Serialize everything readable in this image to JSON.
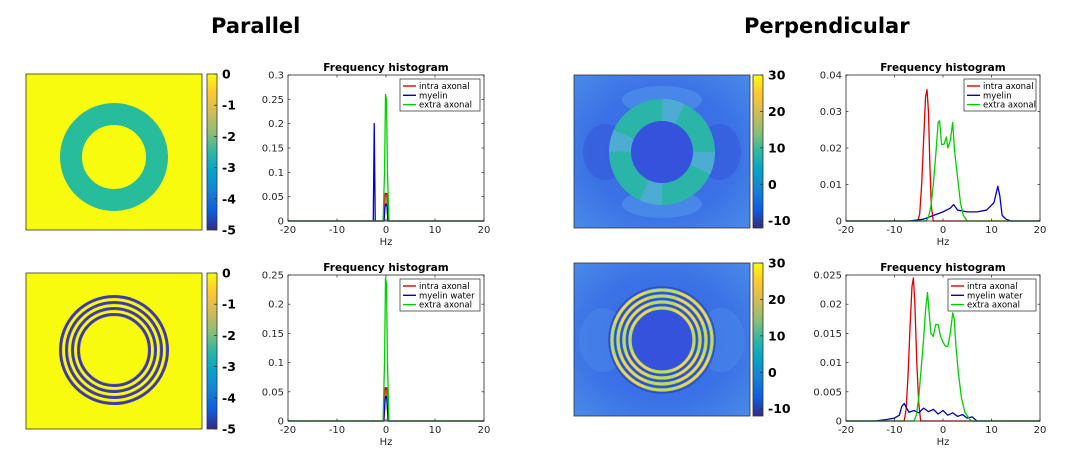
{
  "headings": {
    "left": "Parallel",
    "right": "Perpendicular"
  },
  "colors": {
    "intra": "#e00000",
    "myelin": "#0000d0",
    "extra": "#00d000",
    "yellow": "#f9fb0e",
    "teal": "#27bc9b",
    "stripe_dark": "#3d3aa8",
    "field_bg": "#3b6fe6",
    "field_bg_edge": "#4a8ae8",
    "field_center": "#3552dc"
  },
  "colorbars": [
    {
      "ticks": [
        "0",
        "-1",
        "-2",
        "-3",
        "-4",
        "-5"
      ],
      "range": [
        -5,
        0
      ]
    },
    {
      "ticks": [
        "30",
        "20",
        "10",
        "0",
        "-10"
      ],
      "range": [
        -12,
        30
      ]
    },
    {
      "ticks": [
        "0",
        "-1",
        "-2",
        "-3",
        "-4",
        "-5"
      ],
      "range": [
        -5,
        0
      ]
    },
    {
      "ticks": [
        "30",
        "20",
        "10",
        "0",
        "-10"
      ],
      "range": [
        -12,
        30
      ]
    }
  ],
  "maps": [
    {
      "kind": "parallel-solid"
    },
    {
      "kind": "perpendicular-solid"
    },
    {
      "kind": "parallel-rings"
    },
    {
      "kind": "perpendicular-rings"
    }
  ],
  "chart_data": [
    {
      "type": "line",
      "title": "Frequency histogram",
      "xlabel": "Hz",
      "ylabel": "",
      "xlim": [
        -20,
        20
      ],
      "ylim": [
        0,
        0.3
      ],
      "xticks": [
        "-20",
        "-10",
        "0",
        "10",
        "20"
      ],
      "yticks": [
        "0",
        "0.05",
        "0.1",
        "0.15",
        "0.2",
        "0.25",
        "0.3"
      ],
      "legend_position": "top-right",
      "series": [
        {
          "name": "intra axonal",
          "color": "#e00000",
          "points": [
            [
              -20,
              0
            ],
            [
              -0.4,
              0
            ],
            [
              -0.3,
              0.02
            ],
            [
              -0.15,
              0.057
            ],
            [
              0,
              0.055
            ],
            [
              0.15,
              0.057
            ],
            [
              0.3,
              0.02
            ],
            [
              0.4,
              0
            ],
            [
              20,
              0
            ]
          ]
        },
        {
          "name": "myelin",
          "color": "#0000d0",
          "points": [
            [
              -20,
              0
            ],
            [
              -2.6,
              0
            ],
            [
              -2.4,
              0.2
            ],
            [
              -2.2,
              0
            ],
            [
              -0.4,
              0
            ],
            [
              -0.2,
              0.03
            ],
            [
              0,
              0.035
            ],
            [
              0.2,
              0.03
            ],
            [
              0.4,
              0
            ],
            [
              20,
              0
            ]
          ]
        },
        {
          "name": "extra axonal",
          "color": "#00d000",
          "points": [
            [
              -20,
              0
            ],
            [
              -0.6,
              0
            ],
            [
              -0.3,
              0.1
            ],
            [
              -0.1,
              0.26
            ],
            [
              0.1,
              0.25
            ],
            [
              0.3,
              0.1
            ],
            [
              0.6,
              0
            ],
            [
              20,
              0
            ]
          ]
        }
      ]
    },
    {
      "type": "line",
      "title": "Frequency histogram",
      "xlabel": "Hz",
      "ylabel": "",
      "xlim": [
        -20,
        20
      ],
      "ylim": [
        0,
        0.04
      ],
      "xticks": [
        "-20",
        "-10",
        "0",
        "10",
        "20"
      ],
      "yticks": [
        "0",
        "0.01",
        "0.02",
        "0.03",
        "0.04"
      ],
      "legend_position": "top-right",
      "series": [
        {
          "name": "intra axonal",
          "color": "#e00000",
          "points": [
            [
              -20,
              0
            ],
            [
              -5.2,
              0
            ],
            [
              -4.8,
              0.002
            ],
            [
              -4.4,
              0.01
            ],
            [
              -4.0,
              0.022
            ],
            [
              -3.6,
              0.034
            ],
            [
              -3.3,
              0.036
            ],
            [
              -3.0,
              0.03
            ],
            [
              -2.7,
              0.015
            ],
            [
              -2.4,
              0.004
            ],
            [
              -2.0,
              0
            ],
            [
              20,
              0
            ]
          ]
        },
        {
          "name": "myelin",
          "color": "#0000d0",
          "points": [
            [
              -20,
              0
            ],
            [
              -7,
              0
            ],
            [
              -4,
              0.0005
            ],
            [
              -2,
              0.0015
            ],
            [
              0,
              0.0025
            ],
            [
              1.5,
              0.0035
            ],
            [
              2.2,
              0.0045
            ],
            [
              3,
              0.003
            ],
            [
              5,
              0.0025
            ],
            [
              7,
              0.0025
            ],
            [
              9,
              0.003
            ],
            [
              10.5,
              0.005
            ],
            [
              11.3,
              0.0095
            ],
            [
              11.7,
              0.007
            ],
            [
              12.2,
              0.0015
            ],
            [
              13,
              0.0005
            ],
            [
              14,
              0
            ],
            [
              20,
              0
            ]
          ]
        },
        {
          "name": "extra axonal",
          "color": "#00d000",
          "points": [
            [
              -20,
              0
            ],
            [
              -3.5,
              0
            ],
            [
              -3.0,
              0.001
            ],
            [
              -2.5,
              0.004
            ],
            [
              -2.0,
              0.01
            ],
            [
              -1.5,
              0.018
            ],
            [
              -1.0,
              0.027
            ],
            [
              -0.7,
              0.0275
            ],
            [
              -0.3,
              0.021
            ],
            [
              0.2,
              0.021
            ],
            [
              0.7,
              0.023
            ],
            [
              1.0,
              0.02
            ],
            [
              1.5,
              0.022
            ],
            [
              2.0,
              0.027
            ],
            [
              2.4,
              0.019
            ],
            [
              3,
              0.012
            ],
            [
              3.6,
              0.005
            ],
            [
              4.2,
              0.0015
            ],
            [
              5,
              0
            ],
            [
              20,
              0
            ]
          ]
        }
      ]
    },
    {
      "type": "line",
      "title": "Frequency histogram",
      "xlabel": "Hz",
      "ylabel": "",
      "xlim": [
        -20,
        20
      ],
      "ylim": [
        0,
        0.25
      ],
      "xticks": [
        "-20",
        "-10",
        "0",
        "10",
        "20"
      ],
      "yticks": [
        "0",
        "0.05",
        "0.1",
        "0.15",
        "0.2",
        "0.25"
      ],
      "legend_position": "top-right",
      "series": [
        {
          "name": "intra axonal",
          "color": "#e00000",
          "points": [
            [
              -20,
              0
            ],
            [
              -0.4,
              0
            ],
            [
              -0.3,
              0.02
            ],
            [
              -0.15,
              0.057
            ],
            [
              0,
              0.055
            ],
            [
              0.15,
              0.057
            ],
            [
              0.3,
              0.02
            ],
            [
              0.4,
              0
            ],
            [
              20,
              0
            ]
          ]
        },
        {
          "name": "myelin water",
          "color": "#0000d0",
          "points": [
            [
              -20,
              0
            ],
            [
              -0.5,
              0
            ],
            [
              -0.3,
              0.02
            ],
            [
              -0.15,
              0.04
            ],
            [
              0,
              0.042
            ],
            [
              0.15,
              0.038
            ],
            [
              0.3,
              0.02
            ],
            [
              0.5,
              0
            ],
            [
              20,
              0
            ]
          ]
        },
        {
          "name": "extra axonal",
          "color": "#00d000",
          "points": [
            [
              -20,
              0
            ],
            [
              -0.6,
              0
            ],
            [
              -0.3,
              0.1
            ],
            [
              -0.1,
              0.245
            ],
            [
              0.1,
              0.235
            ],
            [
              0.3,
              0.1
            ],
            [
              0.6,
              0
            ],
            [
              20,
              0
            ]
          ]
        }
      ]
    },
    {
      "type": "line",
      "title": "Frequency histogram",
      "xlabel": "Hz",
      "ylabel": "",
      "xlim": [
        -20,
        20
      ],
      "ylim": [
        0,
        0.025
      ],
      "xticks": [
        "-20",
        "-10",
        "0",
        "10",
        "20"
      ],
      "yticks": [
        "0",
        "0.005",
        "0.01",
        "0.015",
        "0.02",
        "0.025"
      ],
      "legend_position": "top-right",
      "series": [
        {
          "name": "intra axonal",
          "color": "#e00000",
          "points": [
            [
              -20,
              0
            ],
            [
              -8.0,
              0
            ],
            [
              -7.6,
              0.002
            ],
            [
              -7.2,
              0.008
            ],
            [
              -6.8,
              0.016
            ],
            [
              -6.4,
              0.023
            ],
            [
              -6.1,
              0.0245
            ],
            [
              -5.8,
              0.02
            ],
            [
              -5.4,
              0.01
            ],
            [
              -5.0,
              0.003
            ],
            [
              -4.6,
              0
            ],
            [
              20,
              0
            ]
          ]
        },
        {
          "name": "myelin water",
          "color": "#0000d0",
          "points": [
            [
              -20,
              0
            ],
            [
              -14,
              0
            ],
            [
              -12,
              0.0002
            ],
            [
              -10,
              0.0005
            ],
            [
              -9,
              0.001
            ],
            [
              -8.5,
              0.0025
            ],
            [
              -8,
              0.003
            ],
            [
              -7.5,
              0.0022
            ],
            [
              -7,
              0.0015
            ],
            [
              -6,
              0.0018
            ],
            [
              -5,
              0.0014
            ],
            [
              -4,
              0.0022
            ],
            [
              -3,
              0.0016
            ],
            [
              -2,
              0.002
            ],
            [
              -1,
              0.0012
            ],
            [
              0,
              0.0018
            ],
            [
              1,
              0.001
            ],
            [
              2,
              0.0014
            ],
            [
              3,
              0.0008
            ],
            [
              4,
              0.0011
            ],
            [
              5,
              0.0005
            ],
            [
              6,
              0.0007
            ],
            [
              7,
              0
            ],
            [
              20,
              0
            ]
          ]
        },
        {
          "name": "extra axonal",
          "color": "#00d000",
          "points": [
            [
              -20,
              0
            ],
            [
              -6.0,
              0
            ],
            [
              -5.5,
              0.001
            ],
            [
              -5.0,
              0.004
            ],
            [
              -4.5,
              0.009
            ],
            [
              -4.0,
              0.014
            ],
            [
              -3.6,
              0.019
            ],
            [
              -3.2,
              0.022
            ],
            [
              -2.9,
              0.019
            ],
            [
              -2.5,
              0.015
            ],
            [
              -2.0,
              0.0145
            ],
            [
              -1.5,
              0.0165
            ],
            [
              -1.0,
              0.0165
            ],
            [
              -0.5,
              0.0145
            ],
            [
              0,
              0.0135
            ],
            [
              0.5,
              0.0128
            ],
            [
              1.0,
              0.0128
            ],
            [
              1.5,
              0.015
            ],
            [
              2.0,
              0.0185
            ],
            [
              2.3,
              0.0175
            ],
            [
              2.7,
              0.0125
            ],
            [
              3.2,
              0.008
            ],
            [
              3.8,
              0.004
            ],
            [
              4.5,
              0.0015
            ],
            [
              5.5,
              0.0003
            ],
            [
              6,
              0
            ],
            [
              20,
              0
            ]
          ]
        }
      ]
    }
  ]
}
